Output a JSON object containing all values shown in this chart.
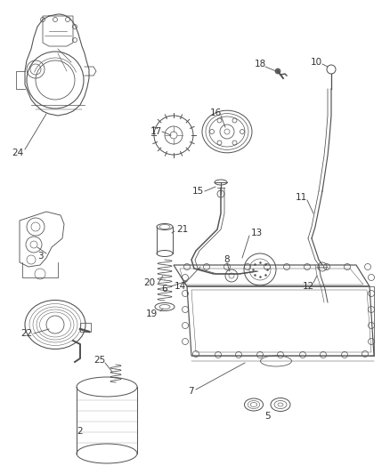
{
  "background_color": "#ffffff",
  "line_color": "#505050",
  "text_color": "#333333",
  "lw": 0.7
}
